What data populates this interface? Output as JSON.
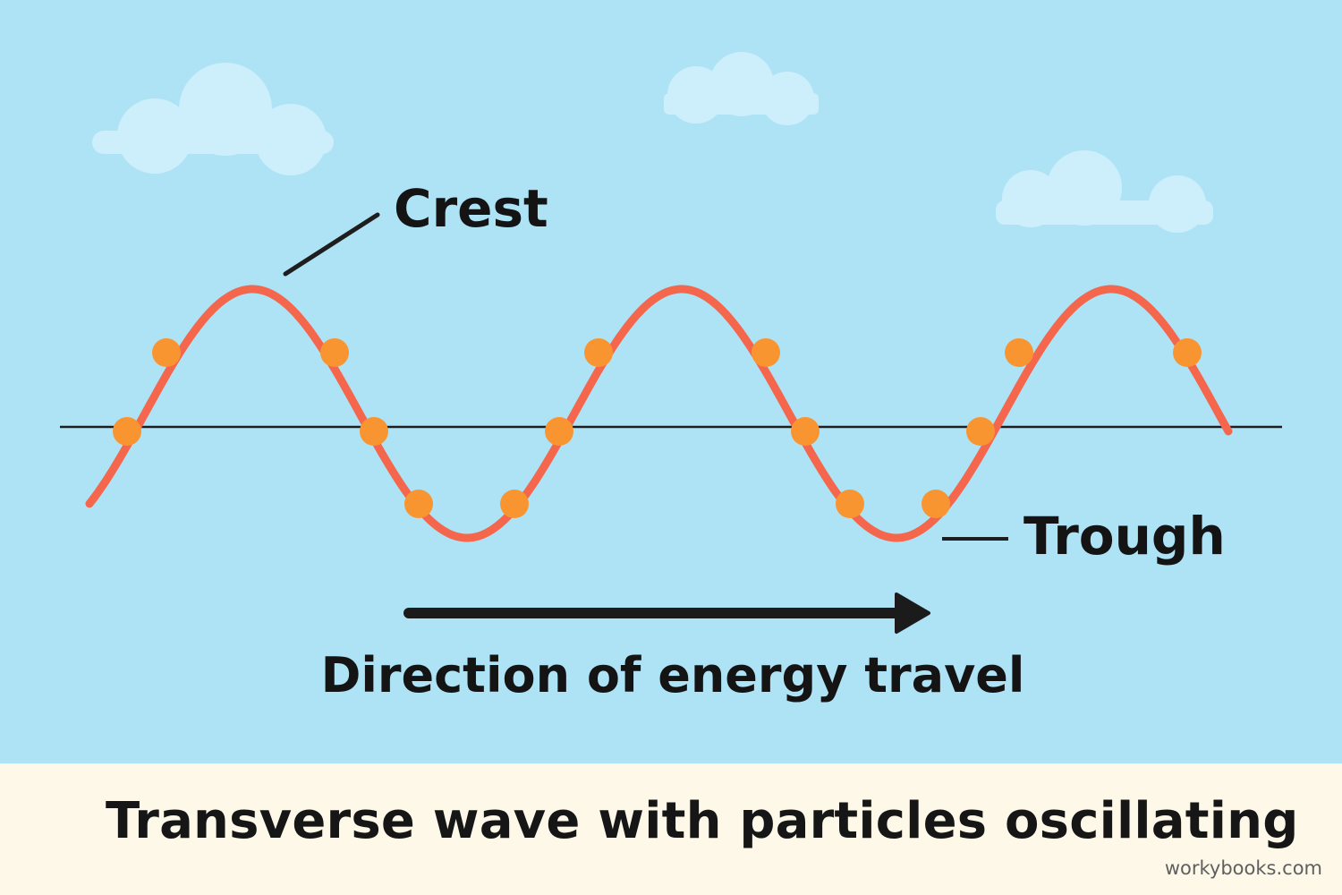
{
  "diagram": {
    "labels": {
      "crest": "Crest",
      "trough": "Trough",
      "direction": "Direction of energy travel"
    },
    "caption": "Transverse wave with particles oscillating",
    "brand": "workybooks.com"
  },
  "colors": {
    "sky": "#aee3f6",
    "cloud": "#cdeefb",
    "wave": "#f4674d",
    "particle": "#f99531",
    "axis": "#1e1e1e",
    "arrow": "#1b1b1b",
    "caption_band": "#fdf8e8",
    "text": "#141414"
  },
  "icons": {
    "cloud": "cloud-icon",
    "arrow": "arrow-right-icon"
  }
}
